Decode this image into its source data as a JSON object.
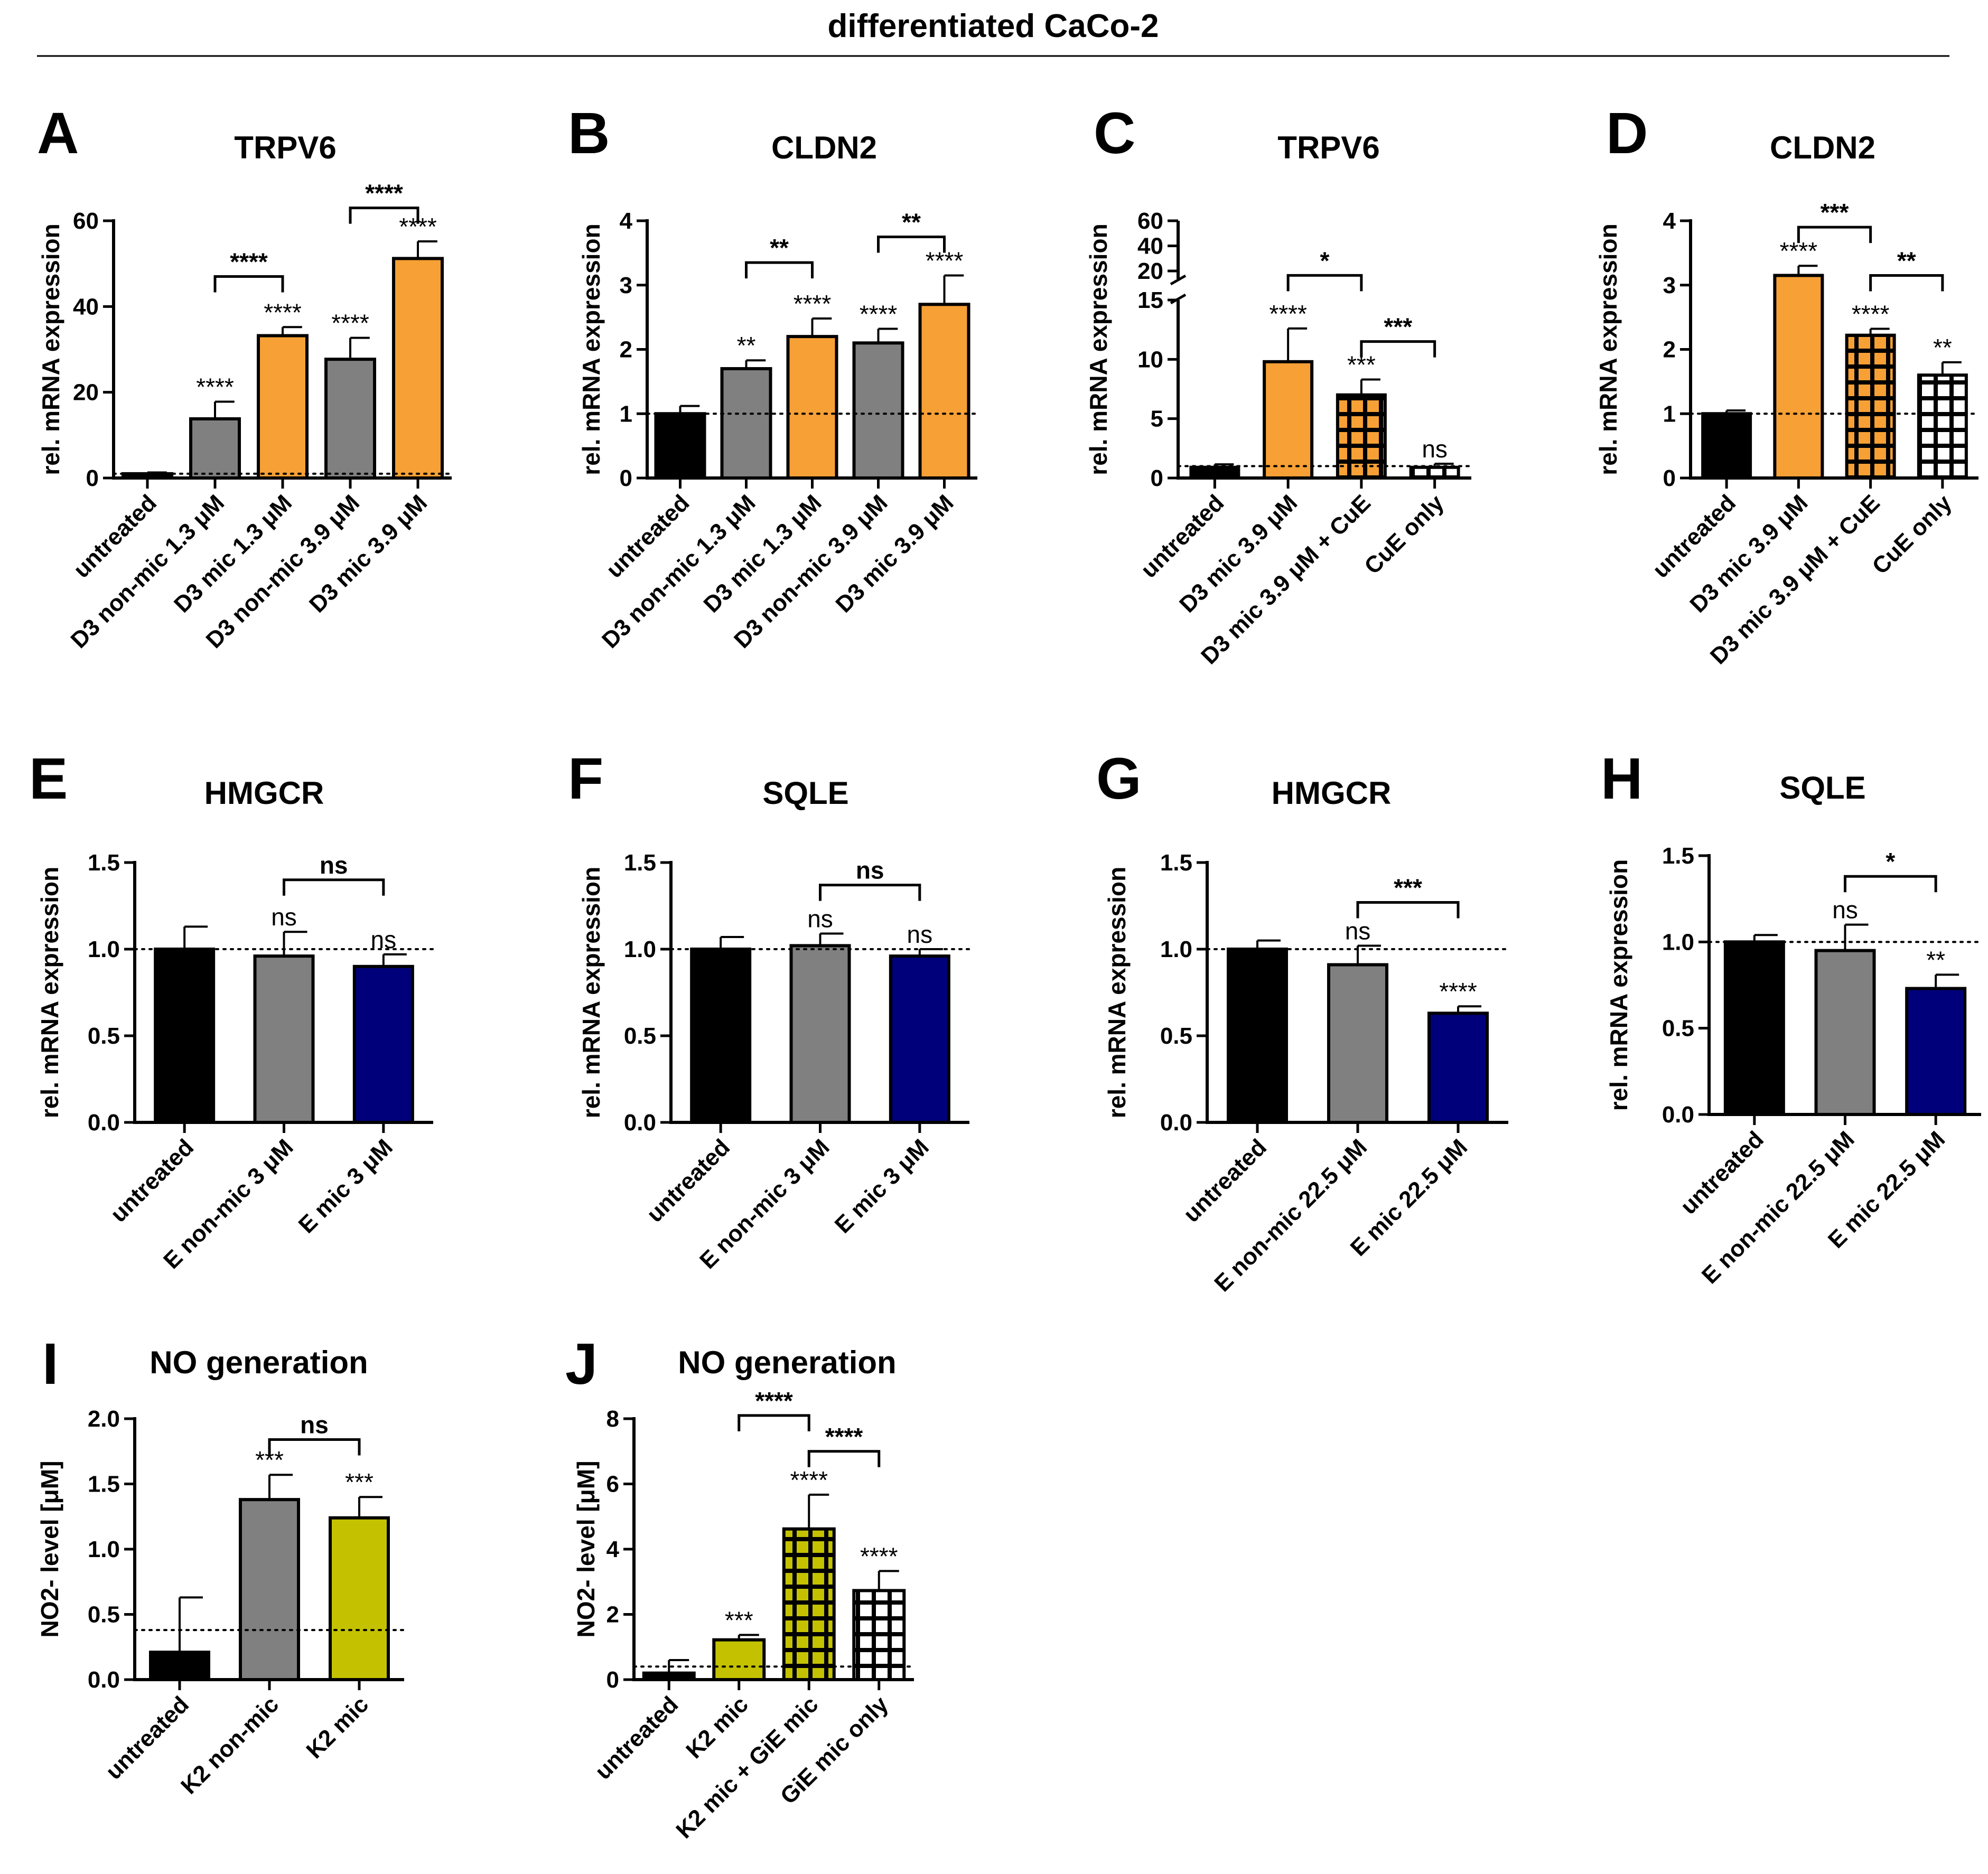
{
  "figure_title": "differentiated CaCo-2",
  "colors": {
    "black": "#000000",
    "gray": "#808080",
    "orange": "#F7A035",
    "navy": "#00007A",
    "olive": "#C4C200",
    "white": "#FFFFFF"
  },
  "chart_data": [
    {
      "panel": "A",
      "type": "bar",
      "title": "TRPV6",
      "ylabel": "rel. mRNA expression",
      "ylim": [
        0,
        60
      ],
      "yticks": [
        0,
        20,
        40,
        60
      ],
      "tick_labels": [
        "0",
        "20",
        "40",
        "60"
      ],
      "baseline": 1,
      "categories": [
        "untreated",
        "D3 non-mic 1.3 μM",
        "D3 mic 1.3 μM",
        "D3 non-mic 3.9 μM",
        "D3 mic 3.9 μM"
      ],
      "values": [
        1,
        13.8,
        33.2,
        27.7,
        51.2
      ],
      "errors": [
        0.3,
        4,
        2,
        5,
        4
      ],
      "colors": [
        "black",
        "gray",
        "orange",
        "gray",
        "orange"
      ],
      "patterns": [
        "solid",
        "solid",
        "solid",
        "solid",
        "solid"
      ],
      "stars": [
        "",
        "****",
        "****",
        "****",
        "****"
      ],
      "brackets": [
        {
          "from": 1,
          "to": 2,
          "level": 47,
          "label": "****"
        },
        {
          "from": 3,
          "to": 4,
          "level": 63,
          "label": "****"
        }
      ]
    },
    {
      "panel": "B",
      "type": "bar",
      "title": "CLDN2",
      "ylabel": "rel. mRNA expression",
      "ylim": [
        0,
        4
      ],
      "yticks": [
        0,
        1,
        2,
        3,
        4
      ],
      "tick_labels": [
        "0",
        "1",
        "2",
        "3",
        "4"
      ],
      "baseline": 1,
      "categories": [
        "untreated",
        "D3 non-mic 1.3 μM",
        "D3 mic 1.3 μM",
        "D3 non-mic 3.9 μM",
        "D3 mic 3.9 μM"
      ],
      "values": [
        1.0,
        1.7,
        2.2,
        2.1,
        2.7
      ],
      "errors": [
        0.12,
        0.13,
        0.28,
        0.22,
        0.45
      ],
      "colors": [
        "black",
        "gray",
        "orange",
        "gray",
        "orange"
      ],
      "patterns": [
        "solid",
        "solid",
        "solid",
        "solid",
        "solid"
      ],
      "stars": [
        "",
        "**",
        "****",
        "****",
        "****"
      ],
      "brackets": [
        {
          "from": 1,
          "to": 2,
          "level": 3.35,
          "label": "**"
        },
        {
          "from": 3,
          "to": 4,
          "level": 3.75,
          "label": "**"
        }
      ]
    },
    {
      "panel": "C",
      "type": "bar",
      "title": "TRPV6",
      "ylabel": "rel. mRNA expression",
      "ylim": [
        0,
        60
      ],
      "yticks": [
        0,
        5,
        10,
        15,
        20,
        40,
        60
      ],
      "tick_labels": [
        "0",
        "5",
        "10",
        "15",
        "20",
        "40",
        "60"
      ],
      "baseline": 1,
      "axis_break": {
        "lower": [
          0,
          15
        ],
        "upper": [
          20,
          60
        ]
      },
      "categories": [
        "untreated",
        "D3 mic 3.9 μM",
        "D3 mic 3.9 μM + CuE",
        "CuE only"
      ],
      "values": [
        0.9,
        9.8,
        7.0,
        0.9
      ],
      "errors": [
        0.25,
        2.8,
        1.3,
        0.3
      ],
      "colors": [
        "black",
        "orange",
        "orange",
        "black"
      ],
      "patterns": [
        "solid",
        "solid",
        "grid",
        "grid"
      ],
      "stars": [
        "",
        "****",
        "***",
        "ns"
      ],
      "brackets": [
        {
          "from": 1,
          "to": 2,
          "level": 16.5,
          "label": "*"
        },
        {
          "from": 2,
          "to": 3,
          "level": 11.5,
          "label": "***"
        }
      ]
    },
    {
      "panel": "D",
      "type": "bar",
      "title": "CLDN2",
      "ylabel": "rel. mRNA expression",
      "ylim": [
        0,
        4
      ],
      "yticks": [
        0,
        1,
        2,
        3,
        4
      ],
      "tick_labels": [
        "0",
        "1",
        "2",
        "3",
        "4"
      ],
      "baseline": 1,
      "categories": [
        "untreated",
        "D3 mic 3.9 μM",
        "D3 mic 3.9 μM + CuE",
        "CuE only"
      ],
      "values": [
        1.0,
        3.15,
        2.22,
        1.6
      ],
      "errors": [
        0.05,
        0.15,
        0.1,
        0.2
      ],
      "colors": [
        "black",
        "orange",
        "orange",
        "black"
      ],
      "patterns": [
        "solid",
        "solid",
        "grid",
        "grid"
      ],
      "stars": [
        "",
        "****",
        "****",
        "**"
      ],
      "brackets": [
        {
          "from": 1,
          "to": 2,
          "level": 3.9,
          "label": "***"
        },
        {
          "from": 2,
          "to": 3,
          "level": 3.15,
          "label": "**"
        }
      ]
    },
    {
      "panel": "E",
      "type": "bar",
      "title": "HMGCR",
      "ylabel": "rel. mRNA expression",
      "ylim": [
        0,
        1.5
      ],
      "yticks": [
        0,
        0.5,
        1.0,
        1.5
      ],
      "tick_labels": [
        "0.0",
        "0.5",
        "1.0",
        "1.5"
      ],
      "baseline": 1,
      "categories": [
        "untreated",
        "E non-mic 3 μM",
        "E mic 3 μM"
      ],
      "values": [
        1.0,
        0.96,
        0.9
      ],
      "errors": [
        0.13,
        0.14,
        0.07
      ],
      "colors": [
        "black",
        "gray",
        "navy"
      ],
      "patterns": [
        "solid",
        "solid",
        "solid"
      ],
      "stars": [
        "",
        "ns",
        "ns"
      ],
      "brackets": [
        {
          "from": 1,
          "to": 2,
          "level": 1.4,
          "label": "ns"
        }
      ]
    },
    {
      "panel": "F",
      "type": "bar",
      "title": "SQLE",
      "ylabel": "rel. mRNA expression",
      "ylim": [
        0,
        1.5
      ],
      "yticks": [
        0,
        0.5,
        1.0,
        1.5
      ],
      "tick_labels": [
        "0.0",
        "0.5",
        "1.0",
        "1.5"
      ],
      "baseline": 1,
      "categories": [
        "untreated",
        "E non-mic 3 μM",
        "E mic 3 μM"
      ],
      "values": [
        1.0,
        1.02,
        0.96
      ],
      "errors": [
        0.07,
        0.07,
        0.04
      ],
      "colors": [
        "black",
        "gray",
        "navy"
      ],
      "patterns": [
        "solid",
        "solid",
        "solid"
      ],
      "stars": [
        "",
        "ns",
        "ns"
      ],
      "brackets": [
        {
          "from": 1,
          "to": 2,
          "level": 1.37,
          "label": "ns"
        }
      ]
    },
    {
      "panel": "G",
      "type": "bar",
      "title": "HMGCR",
      "ylabel": "rel. mRNA expression",
      "ylim": [
        0,
        1.5
      ],
      "yticks": [
        0,
        0.5,
        1.0,
        1.5
      ],
      "tick_labels": [
        "0.0",
        "0.5",
        "1.0",
        "1.5"
      ],
      "baseline": 1,
      "categories": [
        "untreated",
        "E non-mic 22.5 μM",
        "E mic 22.5 μM"
      ],
      "values": [
        1.0,
        0.91,
        0.63
      ],
      "errors": [
        0.05,
        0.11,
        0.04
      ],
      "colors": [
        "black",
        "gray",
        "navy"
      ],
      "patterns": [
        "solid",
        "solid",
        "solid"
      ],
      "stars": [
        "",
        "ns",
        "****"
      ],
      "brackets": [
        {
          "from": 1,
          "to": 2,
          "level": 1.27,
          "label": "***"
        }
      ]
    },
    {
      "panel": "H",
      "type": "bar",
      "title": "SQLE",
      "ylabel": "rel. mRNA expression",
      "ylim": [
        0,
        1.5
      ],
      "yticks": [
        0,
        0.5,
        1.0,
        1.5
      ],
      "tick_labels": [
        "0.0",
        "0.5",
        "1.0",
        "1.5"
      ],
      "baseline": 1,
      "categories": [
        "untreated",
        "E non-mic 22.5 μM",
        "E mic 22.5 μM"
      ],
      "values": [
        1.0,
        0.95,
        0.73
      ],
      "errors": [
        0.04,
        0.15,
        0.08
      ],
      "colors": [
        "black",
        "gray",
        "navy"
      ],
      "patterns": [
        "solid",
        "solid",
        "solid"
      ],
      "stars": [
        "",
        "ns",
        "**"
      ],
      "brackets": [
        {
          "from": 1,
          "to": 2,
          "level": 1.38,
          "label": "*"
        }
      ]
    },
    {
      "panel": "I",
      "type": "bar",
      "title": "NO generation",
      "ylabel": "NO2- level [μM]",
      "ylim": [
        0,
        2.0
      ],
      "yticks": [
        0,
        0.5,
        1.0,
        1.5,
        2.0
      ],
      "tick_labels": [
        "0.0",
        "0.5",
        "1.0",
        "1.5",
        "2.0"
      ],
      "baseline": 0.38,
      "categories": [
        "untreated",
        "K2 non-mic",
        "K2 mic"
      ],
      "values": [
        0.21,
        1.38,
        1.24
      ],
      "errors": [
        0.42,
        0.19,
        0.16
      ],
      "colors": [
        "black",
        "gray",
        "olive"
      ],
      "patterns": [
        "solid",
        "solid",
        "solid"
      ],
      "stars": [
        "",
        "***",
        "***"
      ],
      "brackets": [
        {
          "from": 1,
          "to": 2,
          "level": 1.84,
          "label": "ns"
        }
      ]
    },
    {
      "panel": "J",
      "type": "bar",
      "title": "NO generation",
      "ylabel": "NO2- level [μM]",
      "ylim": [
        0,
        8
      ],
      "yticks": [
        0,
        2,
        4,
        6,
        8
      ],
      "tick_labels": [
        "0",
        "2",
        "4",
        "6",
        "8"
      ],
      "baseline": 0.4,
      "categories": [
        "untreated",
        "K2 mic",
        "K2 mic + GiE mic",
        "GiE mic only"
      ],
      "values": [
        0.2,
        1.22,
        4.62,
        2.73
      ],
      "errors": [
        0.4,
        0.15,
        1.05,
        0.6
      ],
      "colors": [
        "black",
        "olive",
        "olive",
        "black"
      ],
      "patterns": [
        "solid",
        "solid",
        "grid",
        "grid"
      ],
      "stars": [
        "",
        "***",
        "****",
        "****"
      ],
      "brackets": [
        {
          "from": 1,
          "to": 2,
          "level": 8.1,
          "label": "****"
        },
        {
          "from": 2,
          "to": 3,
          "level": 7.0,
          "label": "****"
        }
      ]
    }
  ]
}
